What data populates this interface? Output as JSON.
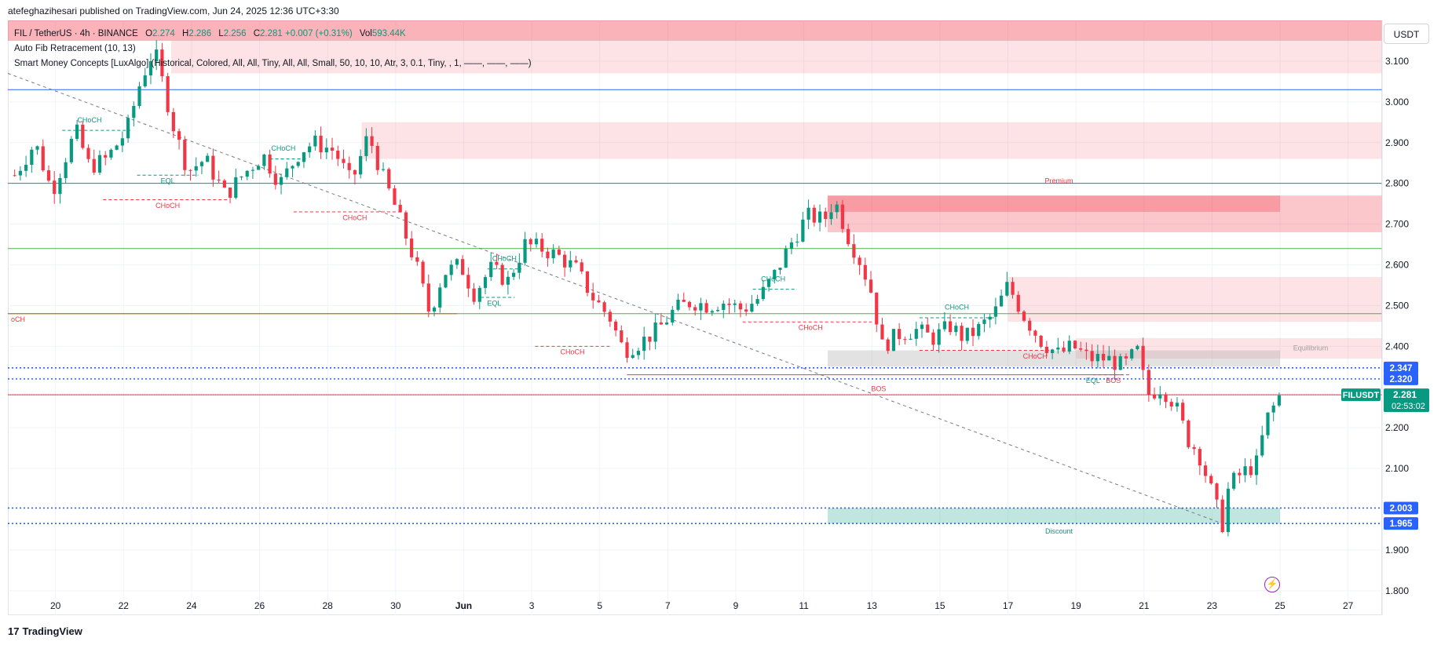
{
  "publisher": "atefeghazihesari published on TradingView.com, Jun 24, 2025 12:36 UTC+3:30",
  "legend": {
    "symbol": "FIL / TetherUS · 4h · BINANCE",
    "open_k": "O",
    "open_v": "2.274",
    "high_k": "H",
    "high_v": "2.286",
    "low_k": "L",
    "low_v": "2.256",
    "close_k": "C",
    "close_v": "2.281",
    "change": "+0.007 (+0.31%)",
    "vol_k": "Vol",
    "vol_v": "593.44K",
    "indicator1": "Auto Fib Retracement (10, 13)",
    "indicator2": "Smart Money Concepts [LuxAlgo] (Historical, Colored, All, All, Tiny, All, All, Small, 50, 10, 10, Atr, 3, 0.1, Tiny, , 1, ——, ——, ——)"
  },
  "currency": "USDT",
  "footer": {
    "logo_mark": "17",
    "logo_text": "TradingView"
  },
  "bolt_icon": "lightning-icon",
  "colors": {
    "up": "#089981",
    "down": "#f23645",
    "premium_zone": "#f23645",
    "discount_zone": "#089981",
    "fib_blue": "#2962ff"
  },
  "chart_data": {
    "type": "candlestick",
    "ylim": [
      1.74,
      3.2
    ],
    "y_ticks": [
      3.1,
      3.0,
      2.9,
      2.8,
      2.7,
      2.6,
      2.5,
      2.4,
      2.2,
      2.1,
      1.9,
      1.8
    ],
    "y_tick_labels": [
      "3.100",
      "3.000",
      "2.900",
      "2.800",
      "2.700",
      "2.600",
      "2.500",
      "2.400",
      "2.200",
      "2.100",
      "1.900",
      "1.800"
    ],
    "x_ticks": [
      {
        "day": 20,
        "label": "20"
      },
      {
        "day": 22,
        "label": "22"
      },
      {
        "day": 24,
        "label": "24"
      },
      {
        "day": 26,
        "label": "26"
      },
      {
        "day": 28,
        "label": "28"
      },
      {
        "day": 30,
        "label": "30"
      },
      {
        "day": 32,
        "label": "Jun"
      },
      {
        "day": 34,
        "label": "3"
      },
      {
        "day": 36,
        "label": "5"
      },
      {
        "day": 38,
        "label": "7"
      },
      {
        "day": 40,
        "label": "9"
      },
      {
        "day": 42,
        "label": "11"
      },
      {
        "day": 44,
        "label": "13"
      },
      {
        "day": 46,
        "label": "15"
      },
      {
        "day": 48,
        "label": "17"
      },
      {
        "day": 50,
        "label": "19"
      },
      {
        "day": 52,
        "label": "21"
      },
      {
        "day": 54,
        "label": "23"
      },
      {
        "day": 56,
        "label": "25"
      },
      {
        "day": 58,
        "label": "27"
      }
    ],
    "price_path": [
      [
        18.8,
        2.82
      ],
      [
        19.4,
        2.9
      ],
      [
        19.9,
        2.78
      ],
      [
        20.6,
        2.93
      ],
      [
        21.0,
        2.84
      ],
      [
        21.5,
        2.86
      ],
      [
        22.1,
        2.93
      ],
      [
        22.5,
        3.05
      ],
      [
        22.9,
        3.13
      ],
      [
        23.2,
        3.03
      ],
      [
        23.5,
        2.93
      ],
      [
        23.9,
        2.83
      ],
      [
        24.4,
        2.86
      ],
      [
        25.0,
        2.77
      ],
      [
        25.5,
        2.82
      ],
      [
        26.1,
        2.87
      ],
      [
        26.6,
        2.8
      ],
      [
        27.2,
        2.88
      ],
      [
        27.6,
        2.9
      ],
      [
        28.2,
        2.88
      ],
      [
        28.7,
        2.8
      ],
      [
        29.2,
        2.92
      ],
      [
        29.6,
        2.82
      ],
      [
        30.0,
        2.74
      ],
      [
        30.6,
        2.6
      ],
      [
        31.0,
        2.48
      ],
      [
        31.4,
        2.58
      ],
      [
        31.9,
        2.6
      ],
      [
        32.3,
        2.53
      ],
      [
        32.8,
        2.59
      ],
      [
        33.3,
        2.56
      ],
      [
        33.8,
        2.65
      ],
      [
        34.3,
        2.64
      ],
      [
        34.8,
        2.62
      ],
      [
        35.3,
        2.59
      ],
      [
        35.8,
        2.52
      ],
      [
        36.3,
        2.47
      ],
      [
        36.7,
        2.39
      ],
      [
        37.2,
        2.41
      ],
      [
        37.7,
        2.44
      ],
      [
        38.2,
        2.49
      ],
      [
        38.7,
        2.51
      ],
      [
        39.2,
        2.5
      ],
      [
        39.6,
        2.51
      ],
      [
        40.2,
        2.49
      ],
      [
        40.7,
        2.52
      ],
      [
        41.1,
        2.57
      ],
      [
        41.6,
        2.65
      ],
      [
        42.1,
        2.72
      ],
      [
        42.6,
        2.71
      ],
      [
        42.9,
        2.76
      ],
      [
        43.3,
        2.67
      ],
      [
        43.7,
        2.6
      ],
      [
        44.0,
        2.53
      ],
      [
        44.3,
        2.4
      ],
      [
        44.8,
        2.43
      ],
      [
        45.3,
        2.44
      ],
      [
        45.8,
        2.42
      ],
      [
        46.3,
        2.45
      ],
      [
        46.7,
        2.42
      ],
      [
        47.1,
        2.44
      ],
      [
        47.6,
        2.48
      ],
      [
        48.0,
        2.55
      ],
      [
        48.5,
        2.47
      ],
      [
        49.0,
        2.41
      ],
      [
        49.5,
        2.38
      ],
      [
        49.9,
        2.4
      ],
      [
        50.4,
        2.37
      ],
      [
        50.9,
        2.37
      ],
      [
        51.4,
        2.35
      ],
      [
        51.8,
        2.39
      ],
      [
        52.1,
        2.28
      ],
      [
        52.5,
        2.3
      ],
      [
        52.9,
        2.26
      ],
      [
        53.3,
        2.17
      ],
      [
        53.6,
        2.14
      ],
      [
        54.0,
        2.04
      ],
      [
        54.3,
        1.96
      ],
      [
        54.5,
        2.06
      ],
      [
        54.9,
        2.09
      ],
      [
        55.3,
        2.11
      ],
      [
        55.6,
        2.22
      ],
      [
        56.0,
        2.28
      ]
    ],
    "fib_lines": [
      {
        "price": 3.03,
        "color": "#2962ff"
      },
      {
        "price": 2.8,
        "color": "#089981"
      },
      {
        "price": 2.64,
        "color": "#4caf50"
      },
      {
        "price": 2.48,
        "color": "#4caf50"
      },
      {
        "price": 2.48,
        "color": "#e65100",
        "x_end": 31.8
      },
      {
        "price": 2.281,
        "color": "#f23645"
      }
    ],
    "dotted_levels": [
      {
        "price": 2.347,
        "label": "2.347"
      },
      {
        "price": 2.32,
        "label": "2.320"
      },
      {
        "price": 2.003,
        "label": "2.003"
      },
      {
        "price": 1.965,
        "label": "1.965"
      }
    ],
    "current_price": {
      "label": "FILUSDT",
      "price": "2.281",
      "countdown": "02:53:02",
      "value": 2.281
    },
    "zones": [
      {
        "x0": 18.6,
        "x1": 59.0,
        "y0": 3.15,
        "y1": 3.2,
        "color": "#f23645",
        "alpha": 0.38
      },
      {
        "x0": 23.4,
        "x1": 59.0,
        "y0": 3.07,
        "y1": 3.15,
        "color": "#f23645",
        "alpha": 0.14
      },
      {
        "x0": 29.0,
        "x1": 59.0,
        "y0": 2.86,
        "y1": 2.95,
        "color": "#f23645",
        "alpha": 0.14
      },
      {
        "x0": 42.7,
        "x1": 59.0,
        "y0": 2.68,
        "y1": 2.77,
        "color": "#f23645",
        "alpha": 0.28
      },
      {
        "x0": 42.7,
        "x1": 56.0,
        "y0": 2.73,
        "y1": 2.77,
        "color": "#f23645",
        "alpha": 0.3
      },
      {
        "x0": 48.0,
        "x1": 59.0,
        "y0": 2.46,
        "y1": 2.57,
        "color": "#f23645",
        "alpha": 0.14
      },
      {
        "x0": 50.0,
        "x1": 59.0,
        "y0": 2.37,
        "y1": 2.42,
        "color": "#f23645",
        "alpha": 0.14
      },
      {
        "x0": 42.7,
        "x1": 56.0,
        "y0": 2.35,
        "y1": 2.39,
        "color": "#9e9e9e",
        "alpha": 0.3
      },
      {
        "x0": 42.7,
        "x1": 56.0,
        "y0": 1.965,
        "y1": 2.003,
        "color": "#089981",
        "alpha": 0.25
      }
    ],
    "trendline": {
      "from": [
        18.6,
        3.07
      ],
      "to": [
        54.3,
        1.965
      ]
    },
    "structure_lines": [
      {
        "x0": 20.2,
        "x1": 22.2,
        "y": 2.93,
        "color": "#089981"
      },
      {
        "x0": 21.4,
        "x1": 25.1,
        "y": 2.76,
        "color": "#f23645"
      },
      {
        "x0": 22.4,
        "x1": 24.2,
        "y": 2.82,
        "color": "#089981"
      },
      {
        "x0": 26.3,
        "x1": 27.4,
        "y": 2.86,
        "color": "#089981"
      },
      {
        "x0": 27.0,
        "x1": 30.1,
        "y": 2.73,
        "color": "#f23645"
      },
      {
        "x0": 32.7,
        "x1": 33.7,
        "y": 2.59,
        "color": "#089981"
      },
      {
        "x0": 32.5,
        "x1": 33.5,
        "y": 2.52,
        "color": "#089981"
      },
      {
        "x0": 34.1,
        "x1": 36.3,
        "y": 2.4,
        "color": "#f23645"
      },
      {
        "x0": 40.5,
        "x1": 41.8,
        "y": 2.54,
        "color": "#089981"
      },
      {
        "x0": 40.2,
        "x1": 44.0,
        "y": 2.46,
        "color": "#f23645"
      },
      {
        "x0": 45.4,
        "x1": 47.6,
        "y": 2.47,
        "color": "#089981"
      },
      {
        "x0": 45.4,
        "x1": 49.3,
        "y": 2.39,
        "color": "#f23645"
      },
      {
        "x0": 36.8,
        "x1": 51.4,
        "y": 2.33,
        "color": "#f23645",
        "solid": true
      },
      {
        "x0": 50.5,
        "x1": 51.6,
        "y": 2.33,
        "color": "#f23645"
      }
    ],
    "annotations": [
      {
        "text": "CHoCH",
        "x": 21.0,
        "y": 2.95,
        "color": "#089981"
      },
      {
        "text": "EQL",
        "x": 23.3,
        "y": 2.8,
        "color": "#089981"
      },
      {
        "text": "CHoCH",
        "x": 23.3,
        "y": 2.74,
        "color": "#f23645"
      },
      {
        "text": "CHoCH",
        "x": 26.7,
        "y": 2.88,
        "color": "#089981"
      },
      {
        "text": "CHoCH",
        "x": 28.8,
        "y": 2.71,
        "color": "#f23645"
      },
      {
        "text": "CHoCH",
        "x": 33.2,
        "y": 2.61,
        "color": "#089981"
      },
      {
        "text": "EQL",
        "x": 32.9,
        "y": 2.5,
        "color": "#089981"
      },
      {
        "text": "CHoCH",
        "x": 35.2,
        "y": 2.38,
        "color": "#f23645"
      },
      {
        "text": "CHoCH",
        "x": 41.1,
        "y": 2.56,
        "color": "#089981"
      },
      {
        "text": "CHoCH",
        "x": 42.2,
        "y": 2.44,
        "color": "#f23645"
      },
      {
        "text": "CHoCH",
        "x": 46.5,
        "y": 2.49,
        "color": "#089981"
      },
      {
        "text": "CHoCH",
        "x": 48.8,
        "y": 2.37,
        "color": "#f23645"
      },
      {
        "text": "EQL",
        "x": 50.5,
        "y": 2.31,
        "color": "#089981"
      },
      {
        "text": "BOS",
        "x": 51.1,
        "y": 2.31,
        "color": "#f23645"
      },
      {
        "text": "BOS",
        "x": 44.2,
        "y": 2.29,
        "color": "#f23645"
      },
      {
        "text": "Premium",
        "x": 49.5,
        "y": 2.8,
        "color": "#f23645"
      },
      {
        "text": "Equilibrium",
        "x": 56.9,
        "y": 2.39,
        "color": "#9e9e9e"
      },
      {
        "text": "Discount",
        "x": 49.5,
        "y": 1.94,
        "color": "#089981"
      },
      {
        "text": "oCH",
        "x": 18.9,
        "y": 2.46,
        "color": "#f23645"
      }
    ]
  }
}
